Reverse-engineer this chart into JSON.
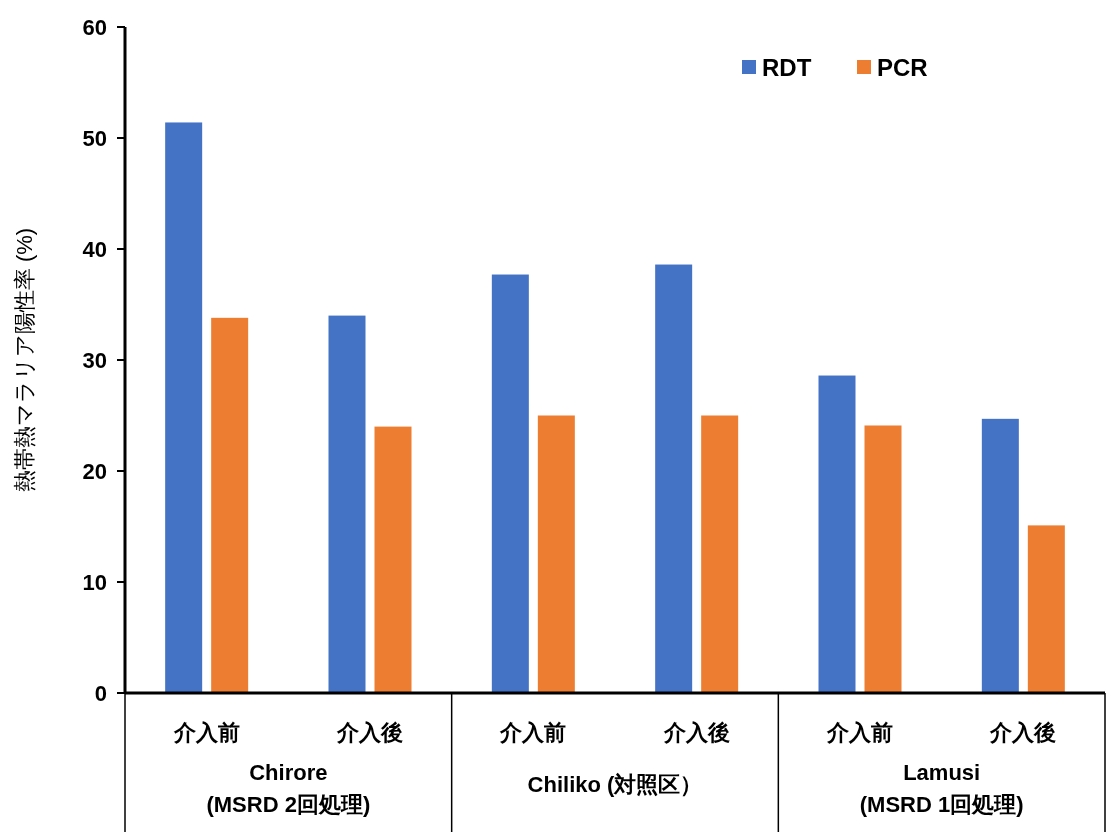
{
  "chart_data": {
    "type": "bar",
    "ylabel": "熱帯熱マラリア陽性率 (%)",
    "categories": [
      "介入前",
      "介入後",
      "介入前",
      "介入後",
      "介入前",
      "介入後"
    ],
    "series": [
      {
        "name": "RDT",
        "color": "#4472c4",
        "values": [
          51.4,
          34.0,
          37.7,
          38.6,
          28.6,
          24.7
        ]
      },
      {
        "name": "PCR",
        "color": "#ed7d31",
        "values": [
          33.8,
          24.0,
          25.0,
          25.0,
          24.1,
          15.1
        ]
      }
    ],
    "annotations": [
      "Chirore\n(MSRD 2回処理)",
      "Chiliko (対照区）",
      "Lamusi\n(MSRD 1回処理)"
    ],
    "ylim": [
      0,
      60
    ],
    "yticks": [
      0,
      10,
      20,
      30,
      40,
      50,
      60
    ],
    "grid": false,
    "legend": "top right"
  }
}
